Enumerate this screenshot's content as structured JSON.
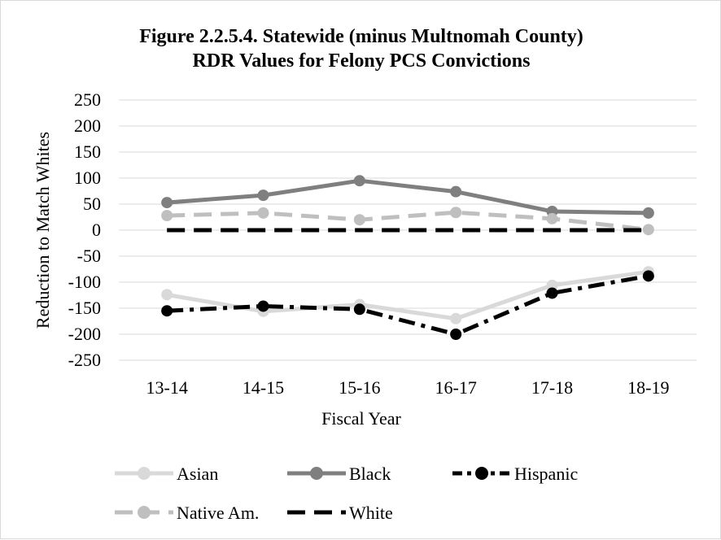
{
  "chart_data": {
    "type": "line",
    "title_lines": [
      "Figure 2.2.5.4. Statewide (minus Multnomah County)",
      "RDR Values for Felony PCS Convictions"
    ],
    "xlabel": "Fiscal Year",
    "ylabel": "Reduction to Match Whites",
    "categories": [
      "13-14",
      "14-15",
      "15-16",
      "16-17",
      "17-18",
      "18-19"
    ],
    "ylim": [
      -250,
      250
    ],
    "yticks": [
      250,
      200,
      150,
      100,
      50,
      0,
      -50,
      -100,
      -150,
      -200,
      -250
    ],
    "grid": true,
    "legend_position": "bottom",
    "series": [
      {
        "name": "Asian",
        "values": [
          -124,
          -156,
          -143,
          -170,
          -106,
          -80
        ],
        "color": "#d9d9d9",
        "dash": "solid",
        "markers": true
      },
      {
        "name": "Black",
        "values": [
          53,
          67,
          95,
          74,
          36,
          33
        ],
        "color": "#7f7f7f",
        "dash": "solid",
        "markers": true
      },
      {
        "name": "Hispanic",
        "values": [
          -155,
          -146,
          -152,
          -200,
          -121,
          -88
        ],
        "color": "#000000",
        "dash": "dashdot",
        "markers": true
      },
      {
        "name": "Native Am.",
        "values": [
          28,
          33,
          20,
          34,
          22,
          1
        ],
        "color": "#bfbfbf",
        "dash": "dash",
        "markers": true
      },
      {
        "name": "White",
        "values": [
          0,
          0,
          0,
          0,
          0,
          0
        ],
        "color": "#000000",
        "dash": "dash",
        "markers": false
      }
    ]
  }
}
